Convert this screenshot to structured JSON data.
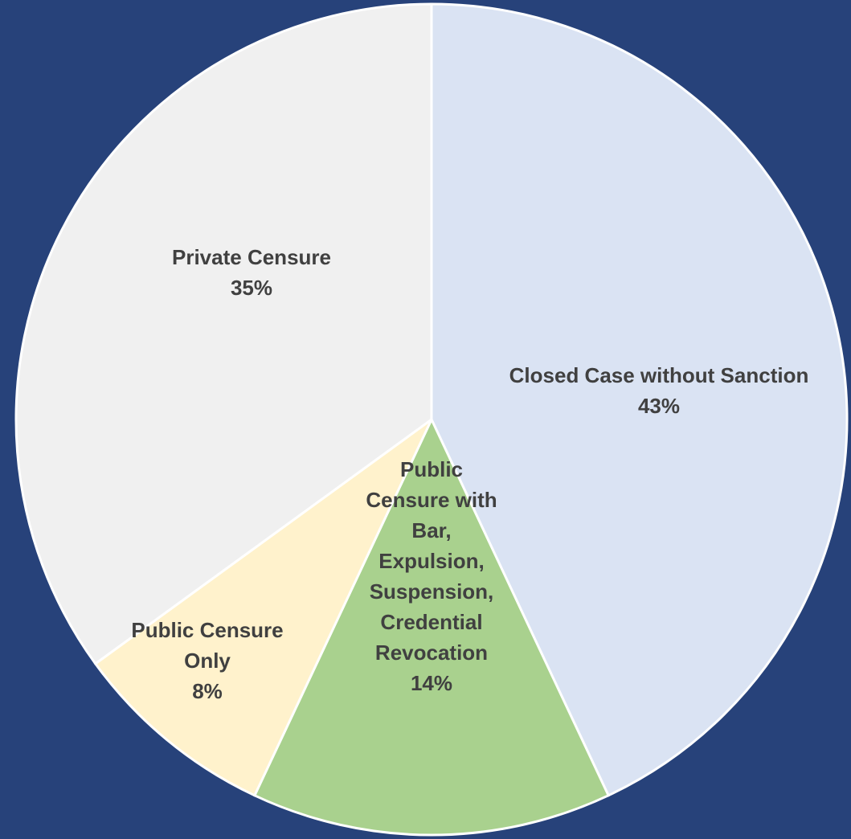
{
  "chart_data": {
    "type": "pie",
    "title": "",
    "background_color": "#27427a",
    "start_angle_deg": 0,
    "direction": "clockwise",
    "slices": [
      {
        "label_lines": [
          "Closed Case without Sanction"
        ],
        "percent_label": "43%",
        "value": 43,
        "color": "#dae3f3"
      },
      {
        "label_lines": [
          "Public",
          "Censure with",
          "Bar,",
          "Expulsion,",
          "Suspension,",
          "Credential",
          "Revocation"
        ],
        "percent_label": "14%",
        "value": 14,
        "color": "#a9d18e"
      },
      {
        "label_lines": [
          "Public Censure",
          "Only"
        ],
        "percent_label": "8%",
        "value": 8,
        "color": "#fff2cc"
      },
      {
        "label_lines": [
          "Private Censure"
        ],
        "percent_label": "35%",
        "value": 35,
        "color": "#f0f0f0"
      }
    ]
  }
}
